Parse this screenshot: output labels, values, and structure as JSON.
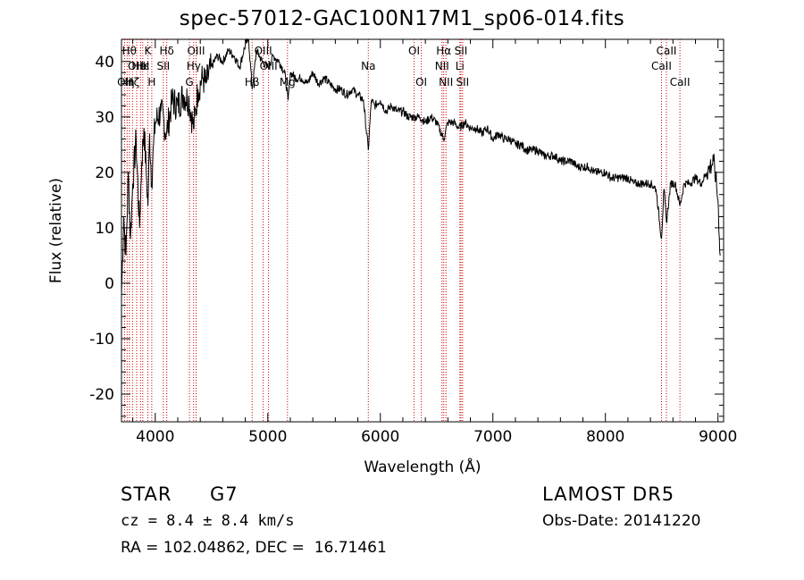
{
  "title": "spec-57012-GAC100N17M1_sp06-014.fits",
  "info": {
    "object_class": "STAR",
    "subclass": "G7",
    "survey": "LAMOST DR5",
    "cz": "cz = 8.4 ± 8.4 km/s",
    "obs_date": "Obs-Date: 20141220",
    "coords": "RA = 102.04862, DEC =  16.71461"
  },
  "chart_data": {
    "type": "line",
    "xlabel": "Wavelength (Å)",
    "ylabel": "Flux (relative)",
    "xlim": [
      3700,
      9050
    ],
    "ylim": [
      -25,
      44
    ],
    "xticks": [
      4000,
      5000,
      6000,
      7000,
      8000,
      9000
    ],
    "yticks": [
      -20,
      -10,
      0,
      10,
      20,
      30,
      40
    ],
    "series": [
      {
        "color": "#000000",
        "x": [
          3700,
          3720,
          3740,
          3760,
          3780,
          3800,
          3830,
          3860,
          3880,
          3900,
          3920,
          3935,
          3950,
          3968,
          3985,
          4000,
          4050,
          4101,
          4150,
          4200,
          4250,
          4300,
          4340,
          4380,
          4420,
          4450,
          4500,
          4550,
          4600,
          4650,
          4700,
          4750,
          4800,
          4830,
          4861,
          4900,
          4950,
          5000,
          5050,
          5100,
          5150,
          5180,
          5200,
          5250,
          5300,
          5350,
          5400,
          5450,
          5500,
          5550,
          5600,
          5650,
          5700,
          5750,
          5800,
          5850,
          5893,
          5920,
          5950,
          6000,
          6050,
          6100,
          6150,
          6200,
          6250,
          6300,
          6350,
          6400,
          6450,
          6500,
          6563,
          6600,
          6650,
          6700,
          6750,
          6800,
          6850,
          6900,
          6950,
          7000,
          7050,
          7100,
          7150,
          7200,
          7250,
          7300,
          7350,
          7400,
          7450,
          7500,
          7550,
          7600,
          7650,
          7700,
          7750,
          7800,
          7850,
          7900,
          7950,
          8000,
          8050,
          8100,
          8150,
          8200,
          8250,
          8300,
          8350,
          8400,
          8450,
          8498,
          8520,
          8542,
          8580,
          8620,
          8662,
          8700,
          8750,
          8800,
          8850,
          8900,
          8930,
          8960,
          8980,
          9000,
          9020
        ],
        "y": [
          -2,
          12,
          5,
          20,
          8,
          18,
          26,
          10,
          22,
          28,
          20,
          14,
          27,
          18,
          25,
          29,
          31,
          27,
          33,
          32,
          34,
          33,
          28,
          35,
          37,
          36,
          39,
          41,
          40,
          42,
          41,
          39,
          43,
          44,
          35,
          42,
          40,
          39,
          41,
          40,
          38,
          33,
          38,
          37,
          37,
          36,
          38,
          36,
          37,
          36,
          35,
          35,
          34,
          35,
          34,
          33,
          24,
          33,
          32,
          33,
          31,
          32,
          31,
          31,
          30,
          30,
          30,
          29,
          30,
          29,
          26,
          29,
          29,
          28,
          29,
          28,
          28,
          27,
          28,
          26,
          27,
          26,
          26,
          25,
          25,
          24,
          24,
          24,
          23,
          23,
          23,
          22,
          22,
          22,
          21,
          21,
          21,
          20,
          20,
          20,
          19,
          19,
          19,
          19,
          18,
          18,
          18,
          18,
          17,
          8,
          17,
          11,
          18,
          18,
          14,
          18,
          18,
          19,
          18,
          20,
          21,
          22,
          19,
          15,
          5
        ]
      }
    ],
    "lines": [
      {
        "wave": 3727,
        "label": "OII",
        "row": 2
      },
      {
        "wave": 3750,
        "label": "Hη",
        "row": 2
      },
      {
        "wave": 3770,
        "label": "Hθ",
        "row": 0
      },
      {
        "wave": 3798,
        "label": "Hζ",
        "row": 2
      },
      {
        "wave": 3835,
        "label": "OIII",
        "row": 1
      },
      {
        "wave": 3869,
        "label": "HeI",
        "row": 1
      },
      {
        "wave": 3889,
        "label": "Hε",
        "row": 1
      },
      {
        "wave": 3934,
        "label": "K",
        "row": 0
      },
      {
        "wave": 3969,
        "label": "H",
        "row": 2
      },
      {
        "wave": 4072,
        "label": "SII",
        "row": 1
      },
      {
        "wave": 4102,
        "label": "Hδ",
        "row": 0
      },
      {
        "wave": 4304,
        "label": "G",
        "row": 2
      },
      {
        "wave": 4341,
        "label": "Hγ",
        "row": 1
      },
      {
        "wave": 4363,
        "label": "OIII",
        "row": 0
      },
      {
        "wave": 4861,
        "label": "Hβ",
        "row": 2
      },
      {
        "wave": 4959,
        "label": "OIII",
        "row": 0
      },
      {
        "wave": 5007,
        "label": "OIII",
        "row": 1
      },
      {
        "wave": 5175,
        "label": "Mg",
        "row": 2
      },
      {
        "wave": 5893,
        "label": "Na",
        "row": 1
      },
      {
        "wave": 6300,
        "label": "OI",
        "row": 0
      },
      {
        "wave": 6364,
        "label": "OI",
        "row": 2
      },
      {
        "wave": 6548,
        "label": "NII",
        "row": 1
      },
      {
        "wave": 6563,
        "label": "Hα",
        "row": 0
      },
      {
        "wave": 6583,
        "label": "NII",
        "row": 2
      },
      {
        "wave": 6707,
        "label": "Li",
        "row": 1
      },
      {
        "wave": 6716,
        "label": "SII",
        "row": 0
      },
      {
        "wave": 6731,
        "label": "SII",
        "row": 2
      },
      {
        "wave": 8498,
        "label": "CaII",
        "row": 1
      },
      {
        "wave": 8542,
        "label": "CaII",
        "row": 0
      },
      {
        "wave": 8662,
        "label": "CaII",
        "row": 2
      }
    ]
  }
}
